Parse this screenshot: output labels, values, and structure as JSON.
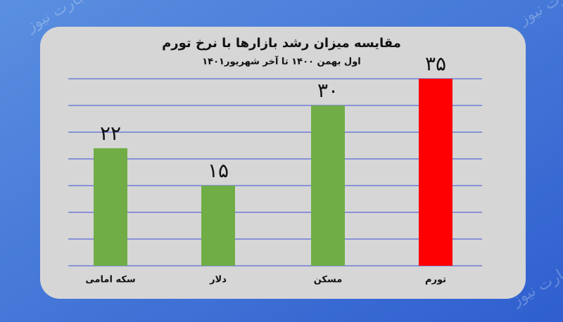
{
  "chart_data": {
    "type": "bar",
    "title": "مقایسه میزان رشد بازارها با نرخ تورم",
    "subtitle": "اول بهمن ۱۴۰۰ تا آخر شهریور۱۴۰۱",
    "watermark": "تجارت نیوز",
    "categories": [
      "سکه امامی",
      "دلار",
      "مسکن",
      "تورم"
    ],
    "values": [
      22,
      15,
      30,
      35
    ],
    "value_labels": [
      "۲۲",
      "۱۵",
      "۳۰",
      "۳۵"
    ],
    "colors": [
      "#70ad47",
      "#70ad47",
      "#70ad47",
      "#ff0000"
    ],
    "ylim": [
      0,
      35
    ],
    "yticks": [
      0,
      5,
      10,
      15,
      20,
      25,
      30,
      35
    ],
    "grid": true,
    "grid_color": "#3b4fd6"
  }
}
